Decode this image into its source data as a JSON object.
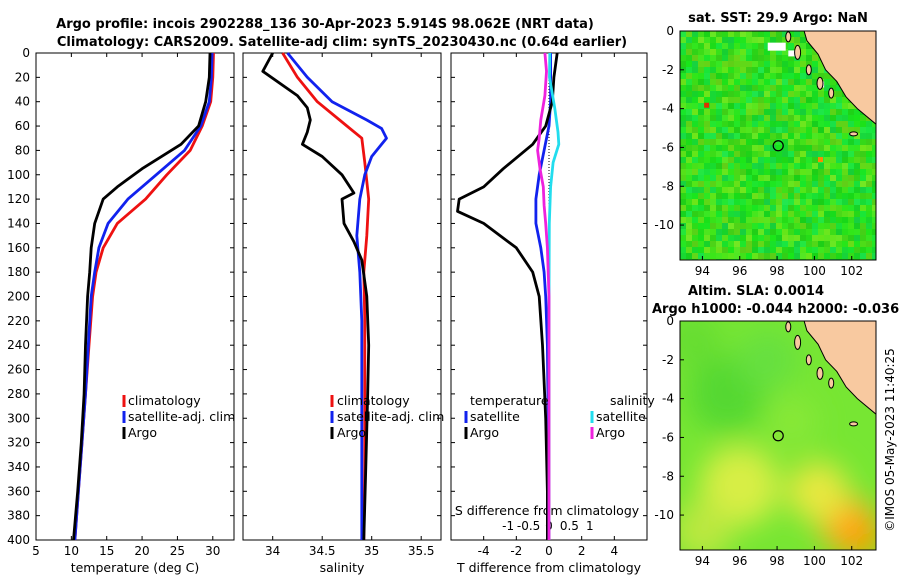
{
  "page": {
    "title_line1": "Argo profile: incois 2902288_136 30-Apr-2023 5.914S 98.062E (NRT data)",
    "title_line2": "Climatology: CARS2009. Satellite-adj clim: synTS_20230430.nc (0.64d earlier)",
    "watermark": "©IMOS 05-May-2023 11:40:25"
  },
  "colors": {
    "argo": "#000000",
    "climatology": "#ee1111",
    "satellite": "#1122ee",
    "sal_satellite": "#22ddee",
    "sal_argo": "#ee22dd",
    "land": "#f8c9a0",
    "ocean_base": "#33dd33"
  },
  "chart_data": [
    {
      "type": "line",
      "name": "temperature",
      "xlabel": "temperature (deg C)",
      "xlim": [
        5,
        33
      ],
      "ylim": [
        0,
        400
      ],
      "xticks": [
        5,
        10,
        15,
        20,
        25,
        30
      ],
      "yticks": [
        0,
        20,
        40,
        60,
        80,
        100,
        120,
        140,
        160,
        180,
        200,
        220,
        240,
        260,
        280,
        300,
        320,
        340,
        360,
        380,
        400
      ],
      "legend": [
        "climatology",
        "satellite-adj. clim",
        "Argo"
      ],
      "series": [
        {
          "name": "climatology",
          "color": "#ee1111",
          "points": [
            [
              30.1,
              0
            ],
            [
              30.0,
              20
            ],
            [
              29.7,
              40
            ],
            [
              28.5,
              60
            ],
            [
              26.8,
              80
            ],
            [
              23.5,
              100
            ],
            [
              20.5,
              120
            ],
            [
              16.5,
              140
            ],
            [
              14.5,
              160
            ],
            [
              13.5,
              180
            ],
            [
              13.0,
              200
            ],
            [
              12.5,
              240
            ],
            [
              12.0,
              280
            ],
            [
              11.5,
              320
            ],
            [
              11.0,
              360
            ],
            [
              10.5,
              400
            ]
          ]
        },
        {
          "name": "satellite-adj. clim",
          "color": "#1122ee",
          "points": [
            [
              29.9,
              0
            ],
            [
              29.8,
              20
            ],
            [
              29.5,
              40
            ],
            [
              28.3,
              60
            ],
            [
              26.0,
              80
            ],
            [
              22.0,
              100
            ],
            [
              18.0,
              120
            ],
            [
              15.2,
              140
            ],
            [
              13.9,
              160
            ],
            [
              13.3,
              180
            ],
            [
              12.8,
              200
            ],
            [
              12.4,
              240
            ],
            [
              12.0,
              280
            ],
            [
              11.5,
              320
            ],
            [
              11.0,
              360
            ],
            [
              10.5,
              400
            ]
          ]
        },
        {
          "name": "Argo",
          "color": "#000000",
          "points": [
            [
              29.6,
              0
            ],
            [
              29.5,
              20
            ],
            [
              29.0,
              40
            ],
            [
              28.0,
              60
            ],
            [
              25.5,
              75
            ],
            [
              20.0,
              95
            ],
            [
              16.5,
              110
            ],
            [
              14.5,
              120
            ],
            [
              13.3,
              140
            ],
            [
              12.8,
              160
            ],
            [
              12.6,
              180
            ],
            [
              12.3,
              200
            ],
            [
              12.0,
              240
            ],
            [
              11.8,
              280
            ],
            [
              11.4,
              320
            ],
            [
              10.9,
              360
            ],
            [
              10.3,
              400
            ]
          ]
        }
      ]
    },
    {
      "type": "line",
      "name": "salinity",
      "xlabel": "salinity",
      "xlim": [
        33.7,
        35.7
      ],
      "ylim": [
        0,
        400
      ],
      "xticks": [
        34,
        34.5,
        35,
        35.5
      ],
      "xticklabels": [
        "34",
        "34.5",
        "35",
        "35.5"
      ],
      "legend": [
        "climatology",
        "satellite-adj. clim",
        "Argo"
      ],
      "series": [
        {
          "name": "climatology",
          "color": "#ee1111",
          "points": [
            [
              34.1,
              0
            ],
            [
              34.25,
              20
            ],
            [
              34.45,
              40
            ],
            [
              34.75,
              60
            ],
            [
              34.9,
              70
            ],
            [
              34.93,
              90
            ],
            [
              34.97,
              120
            ],
            [
              34.95,
              150
            ],
            [
              34.92,
              180
            ],
            [
              34.93,
              220
            ],
            [
              34.93,
              280
            ],
            [
              34.93,
              340
            ],
            [
              34.92,
              400
            ]
          ]
        },
        {
          "name": "satellite-adj. clim",
          "color": "#1122ee",
          "points": [
            [
              34.15,
              0
            ],
            [
              34.35,
              20
            ],
            [
              34.6,
              40
            ],
            [
              34.95,
              55
            ],
            [
              35.1,
              62
            ],
            [
              35.15,
              70
            ],
            [
              35.0,
              85
            ],
            [
              34.93,
              100
            ],
            [
              34.88,
              120
            ],
            [
              34.85,
              150
            ],
            [
              34.88,
              180
            ],
            [
              34.9,
              220
            ],
            [
              34.9,
              280
            ],
            [
              34.9,
              340
            ],
            [
              34.9,
              400
            ]
          ]
        },
        {
          "name": "Argo",
          "color": "#000000",
          "points": [
            [
              34.0,
              0
            ],
            [
              33.9,
              15
            ],
            [
              34.25,
              35
            ],
            [
              34.35,
              45
            ],
            [
              34.38,
              55
            ],
            [
              34.35,
              65
            ],
            [
              34.3,
              75
            ],
            [
              34.5,
              85
            ],
            [
              34.7,
              100
            ],
            [
              34.82,
              115
            ],
            [
              34.7,
              120
            ],
            [
              34.72,
              140
            ],
            [
              34.82,
              155
            ],
            [
              34.9,
              170
            ],
            [
              34.95,
              200
            ],
            [
              34.97,
              240
            ],
            [
              34.96,
              280
            ],
            [
              34.94,
              340
            ],
            [
              34.92,
              400
            ]
          ]
        }
      ]
    },
    {
      "type": "line",
      "name": "difference",
      "xlabel": "T difference from climatology",
      "xlabel_top": "S difference from climatology",
      "xlim": [
        -6,
        6
      ],
      "ylim": [
        0,
        400
      ],
      "xticks": [
        -4,
        -2,
        0,
        2,
        4
      ],
      "xticks_top": [
        -1,
        -0.5,
        0,
        0.5,
        1
      ],
      "xticklabels_top": [
        "-1",
        "-0.5",
        "0",
        "0.5",
        "1"
      ],
      "legend_titles": [
        "temperature",
        "salinity"
      ],
      "legend_temperature": [
        "satellite",
        "Argo"
      ],
      "legend_salinity": [
        "satellite",
        "Argo"
      ],
      "series": [
        {
          "name": "temperature satellite",
          "color": "#1122ee",
          "points": [
            [
              0.1,
              0
            ],
            [
              0.1,
              20
            ],
            [
              0.1,
              40
            ],
            [
              0.0,
              60
            ],
            [
              -0.3,
              80
            ],
            [
              -0.6,
              100
            ],
            [
              -0.8,
              120
            ],
            [
              -0.8,
              140
            ],
            [
              -0.5,
              160
            ],
            [
              -0.3,
              180
            ],
            [
              -0.2,
              200
            ],
            [
              -0.1,
              240
            ],
            [
              -0.05,
              300
            ],
            [
              0,
              400
            ]
          ]
        },
        {
          "name": "temperature Argo",
          "color": "#000000",
          "points": [
            [
              0.5,
              0
            ],
            [
              0.3,
              20
            ],
            [
              0.2,
              40
            ],
            [
              -0.2,
              60
            ],
            [
              -1.0,
              75
            ],
            [
              -2.8,
              95
            ],
            [
              -4.0,
              110
            ],
            [
              -5.5,
              120
            ],
            [
              -5.6,
              130
            ],
            [
              -4.0,
              140
            ],
            [
              -2.0,
              160
            ],
            [
              -1.0,
              180
            ],
            [
              -0.6,
              200
            ],
            [
              -0.4,
              240
            ],
            [
              -0.2,
              300
            ],
            [
              -0.1,
              360
            ],
            [
              -0.1,
              400
            ]
          ]
        },
        {
          "name": "salinity satellite",
          "color": "#22ddee",
          "points": [
            [
              0.05,
              0
            ],
            [
              0.03,
              20
            ],
            [
              0.35,
              45
            ],
            [
              0.55,
              65
            ],
            [
              0.6,
              75
            ],
            [
              0.25,
              90
            ],
            [
              0.1,
              110
            ],
            [
              0.02,
              140
            ],
            [
              0.0,
              200
            ],
            [
              0.0,
              300
            ],
            [
              0.0,
              400
            ]
          ]
        },
        {
          "name": "salinity Argo",
          "color": "#ee22dd",
          "points": [
            [
              -0.25,
              0
            ],
            [
              -0.15,
              15
            ],
            [
              -0.25,
              35
            ],
            [
              -0.5,
              55
            ],
            [
              -0.6,
              70
            ],
            [
              -0.7,
              80
            ],
            [
              -0.55,
              95
            ],
            [
              -0.35,
              110
            ],
            [
              -0.3,
              125
            ],
            [
              -0.2,
              140
            ],
            [
              -0.1,
              160
            ],
            [
              -0.05,
              180
            ],
            [
              0.0,
              200
            ],
            [
              0.0,
              400
            ]
          ]
        }
      ]
    },
    {
      "type": "heatmap",
      "name": "sst_map",
      "title": "sat. SST: 29.9 Argo: NaN",
      "xlim": [
        92.8,
        103.3
      ],
      "ylim": [
        -11.8,
        0
      ],
      "xticks": [
        94,
        96,
        98,
        100,
        102
      ],
      "yticks": [
        0,
        -2,
        -4,
        -6,
        -8,
        -10
      ],
      "argo_position": [
        98.062,
        -5.914
      ]
    },
    {
      "type": "heatmap",
      "name": "sla_map",
      "title_line1": "Altim. SLA: 0.0014",
      "title_line2": "Argo h1000: -0.044 h2000: -0.036",
      "xlim": [
        92.8,
        103.3
      ],
      "ylim": [
        -11.8,
        0
      ],
      "xticks": [
        94,
        96,
        98,
        100,
        102
      ],
      "yticks": [
        0,
        -2,
        -4,
        -6,
        -8,
        -10
      ],
      "argo_position": [
        98.062,
        -5.914
      ]
    }
  ]
}
